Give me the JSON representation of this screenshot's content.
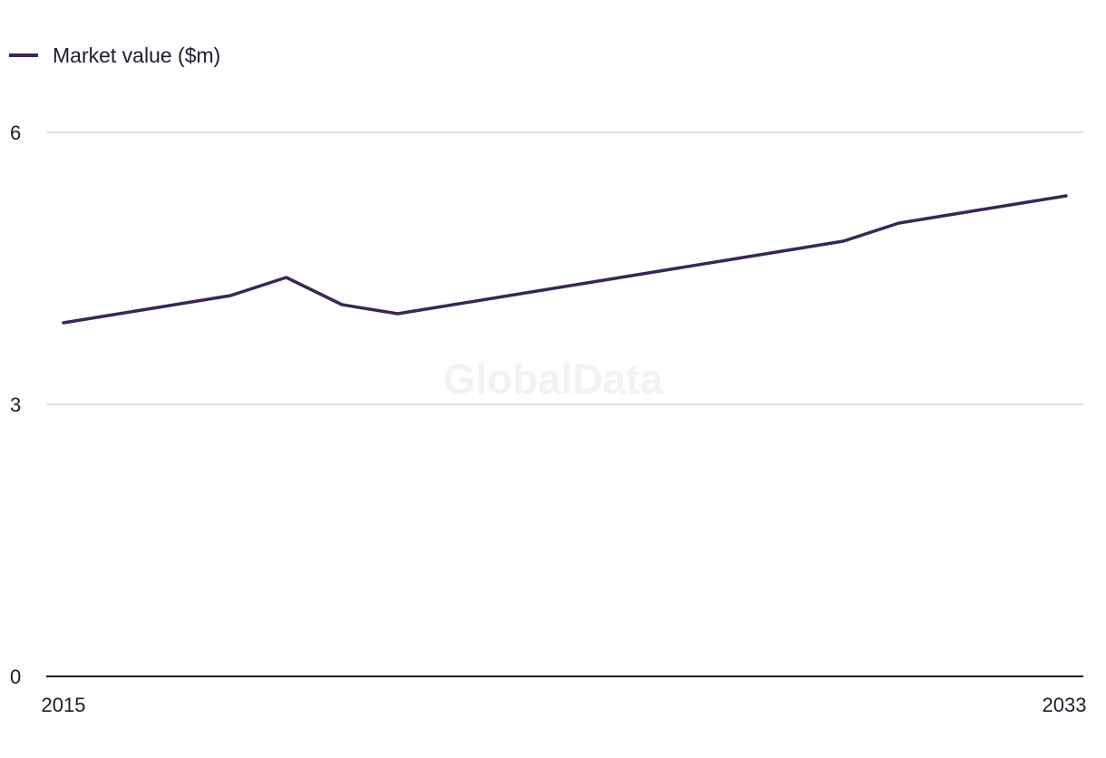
{
  "chart_data": {
    "type": "line",
    "title": "",
    "xlabel": "",
    "ylabel": "",
    "legend_position": "top-left",
    "grid": true,
    "watermark": "GlobalData",
    "colors": {
      "series": "#3a2656",
      "grid": "#d9d9dd",
      "axis": "#1f1a2e",
      "watermark": "#f2f2f4"
    },
    "x": [
      2015,
      2016,
      2017,
      2018,
      2019,
      2020,
      2021,
      2022,
      2023,
      2024,
      2025,
      2026,
      2027,
      2028,
      2029,
      2030,
      2031,
      2032,
      2033
    ],
    "xlim": [
      2015,
      2033
    ],
    "x_tick_labels": [
      "2015",
      "2033"
    ],
    "ylim": [
      0,
      6
    ],
    "y_ticks": [
      0,
      3,
      6
    ],
    "y_tick_labels": [
      "0",
      "3",
      "6"
    ],
    "series": [
      {
        "name": "Market value ($m)",
        "values": [
          3.9,
          4.0,
          4.1,
          4.2,
          4.4,
          4.1,
          4.0,
          4.1,
          4.2,
          4.3,
          4.4,
          4.5,
          4.6,
          4.7,
          4.8,
          5.0,
          5.1,
          5.2,
          5.3
        ]
      }
    ]
  }
}
